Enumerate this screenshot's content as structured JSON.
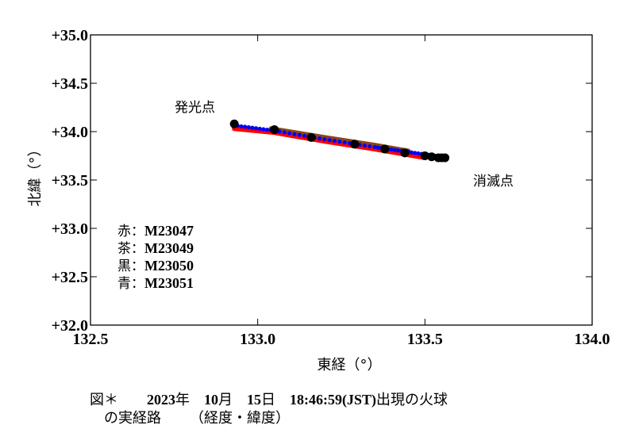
{
  "chart_data": {
    "type": "scatter",
    "title": "",
    "xlabel": "東経（°）",
    "ylabel": "北緯（°）",
    "xlim": [
      132.5,
      134.0
    ],
    "ylim": [
      32.0,
      35.0
    ],
    "x_ticks": [
      "132.5",
      "133.0",
      "133.5",
      "134.0"
    ],
    "y_ticks": [
      "+32.0",
      "+32.5",
      "+33.0",
      "+33.5",
      "+34.0",
      "+34.5",
      "+35.0"
    ],
    "grid": false,
    "annotations": [
      {
        "text": "発光点",
        "x": 132.79,
        "y": 34.23
      },
      {
        "text": "消滅点",
        "x": 133.68,
        "y": 33.48
      }
    ],
    "legend_position": "lower-left inside",
    "series": [
      {
        "name": "M23047",
        "color_name": "赤",
        "color": "#ff0000",
        "style": "thick line of dots",
        "points": [
          [
            132.93,
            34.03
          ],
          [
            133.05,
            33.99
          ],
          [
            133.2,
            33.9
          ],
          [
            133.35,
            33.82
          ],
          [
            133.5,
            33.73
          ]
        ]
      },
      {
        "name": "M23049",
        "color_name": "茶",
        "color": "#8b4513",
        "style": "thick line",
        "points": [
          [
            133.04,
            34.03
          ],
          [
            133.2,
            33.94
          ],
          [
            133.35,
            33.86
          ],
          [
            133.45,
            33.8
          ]
        ]
      },
      {
        "name": "M23050",
        "color_name": "黒",
        "color": "#000000",
        "style": "large markers",
        "points": [
          [
            132.93,
            34.08
          ],
          [
            133.05,
            34.02
          ],
          [
            133.16,
            33.94
          ],
          [
            133.29,
            33.87
          ],
          [
            133.38,
            33.82
          ],
          [
            133.44,
            33.78
          ],
          [
            133.5,
            33.75
          ],
          [
            133.52,
            33.74
          ],
          [
            133.54,
            33.73
          ],
          [
            133.55,
            33.73
          ],
          [
            133.56,
            33.73
          ]
        ]
      },
      {
        "name": "M23051",
        "color_name": "青",
        "color": "#0000ff",
        "style": "small markers",
        "points": [
          [
            132.94,
            34.06
          ],
          [
            133.05,
            34.01
          ],
          [
            133.2,
            33.92
          ],
          [
            133.35,
            33.84
          ],
          [
            133.45,
            33.79
          ],
          [
            133.55,
            33.74
          ]
        ]
      }
    ]
  },
  "legend": [
    {
      "key": "赤",
      "sep": "：",
      "id": "M23047"
    },
    {
      "key": "茶",
      "sep": "：",
      "id": "M23049"
    },
    {
      "key": "黒",
      "sep": "：",
      "id": "M23050"
    },
    {
      "key": "青",
      "sep": "：",
      "id": "M23051"
    }
  ],
  "caption": {
    "fig": "図＊",
    "year": "2023",
    "year_unit": "年",
    "month": "10",
    "month_unit": "月",
    "day": "15",
    "day_unit": "日",
    "time": "18:46:59(JST)",
    "suffix1": "出現の火球",
    "line2a": "の実経路",
    "line2b": "（経度・緯度）"
  }
}
